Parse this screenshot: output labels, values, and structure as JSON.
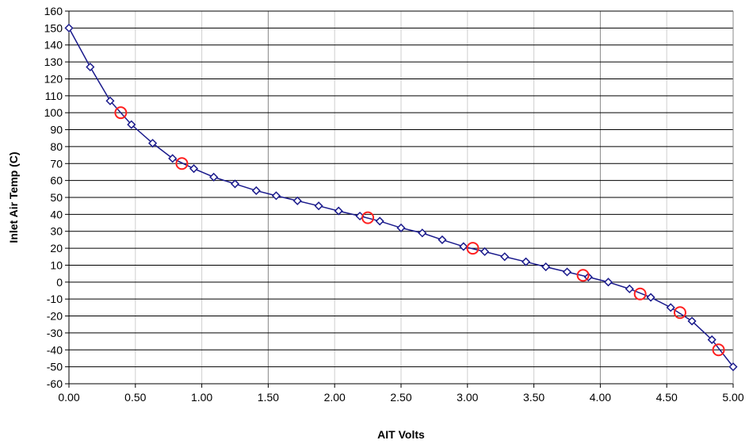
{
  "chart_data": {
    "type": "scatter",
    "title": "",
    "xlabel": "AIT Volts",
    "ylabel": "Inlet Air Temp (C)",
    "xlim": [
      0,
      5
    ],
    "ylim": [
      -60,
      160
    ],
    "x_ticks": [
      "0.00",
      "0.50",
      "1.00",
      "1.50",
      "2.00",
      "2.50",
      "3.00",
      "3.50",
      "4.00",
      "4.50",
      "5.00"
    ],
    "y_ticks": [
      "160",
      "150",
      "140",
      "130",
      "120",
      "110",
      "100",
      "90",
      "80",
      "70",
      "60",
      "50",
      "40",
      "30",
      "20",
      "10",
      "0",
      "-10",
      "-20",
      "-30",
      "-40",
      "-50",
      "-60"
    ],
    "grid": {
      "horizontal": "black",
      "vertical": "gray"
    },
    "legend": "none",
    "series": [
      {
        "marker": "diamond",
        "line": "solid",
        "color": "#1a1a8c",
        "x": [
          0.0,
          0.16,
          0.31,
          0.47,
          0.63,
          0.78,
          0.94,
          1.09,
          1.25,
          1.41,
          1.56,
          1.72,
          1.88,
          2.03,
          2.19,
          2.34,
          2.5,
          2.66,
          2.81,
          2.97,
          3.13,
          3.28,
          3.44,
          3.59,
          3.75,
          3.91,
          4.06,
          4.22,
          4.38,
          4.53,
          4.69,
          4.84,
          5.0
        ],
        "y": [
          150,
          127,
          107,
          93,
          82,
          73,
          67,
          62,
          58,
          54,
          51,
          48,
          45,
          42,
          39,
          36,
          32,
          29,
          25,
          21,
          18,
          15,
          12,
          9,
          6,
          3,
          0,
          -4,
          -9,
          -15,
          -23,
          -34,
          -50
        ]
      },
      {
        "marker": "circle",
        "line": "none",
        "color": "#ff2020",
        "x": [
          0.39,
          0.85,
          2.25,
          3.04,
          3.87,
          4.3,
          4.6,
          4.89
        ],
        "y": [
          100,
          70,
          38,
          20,
          4,
          -7,
          -18,
          -40
        ]
      }
    ]
  }
}
